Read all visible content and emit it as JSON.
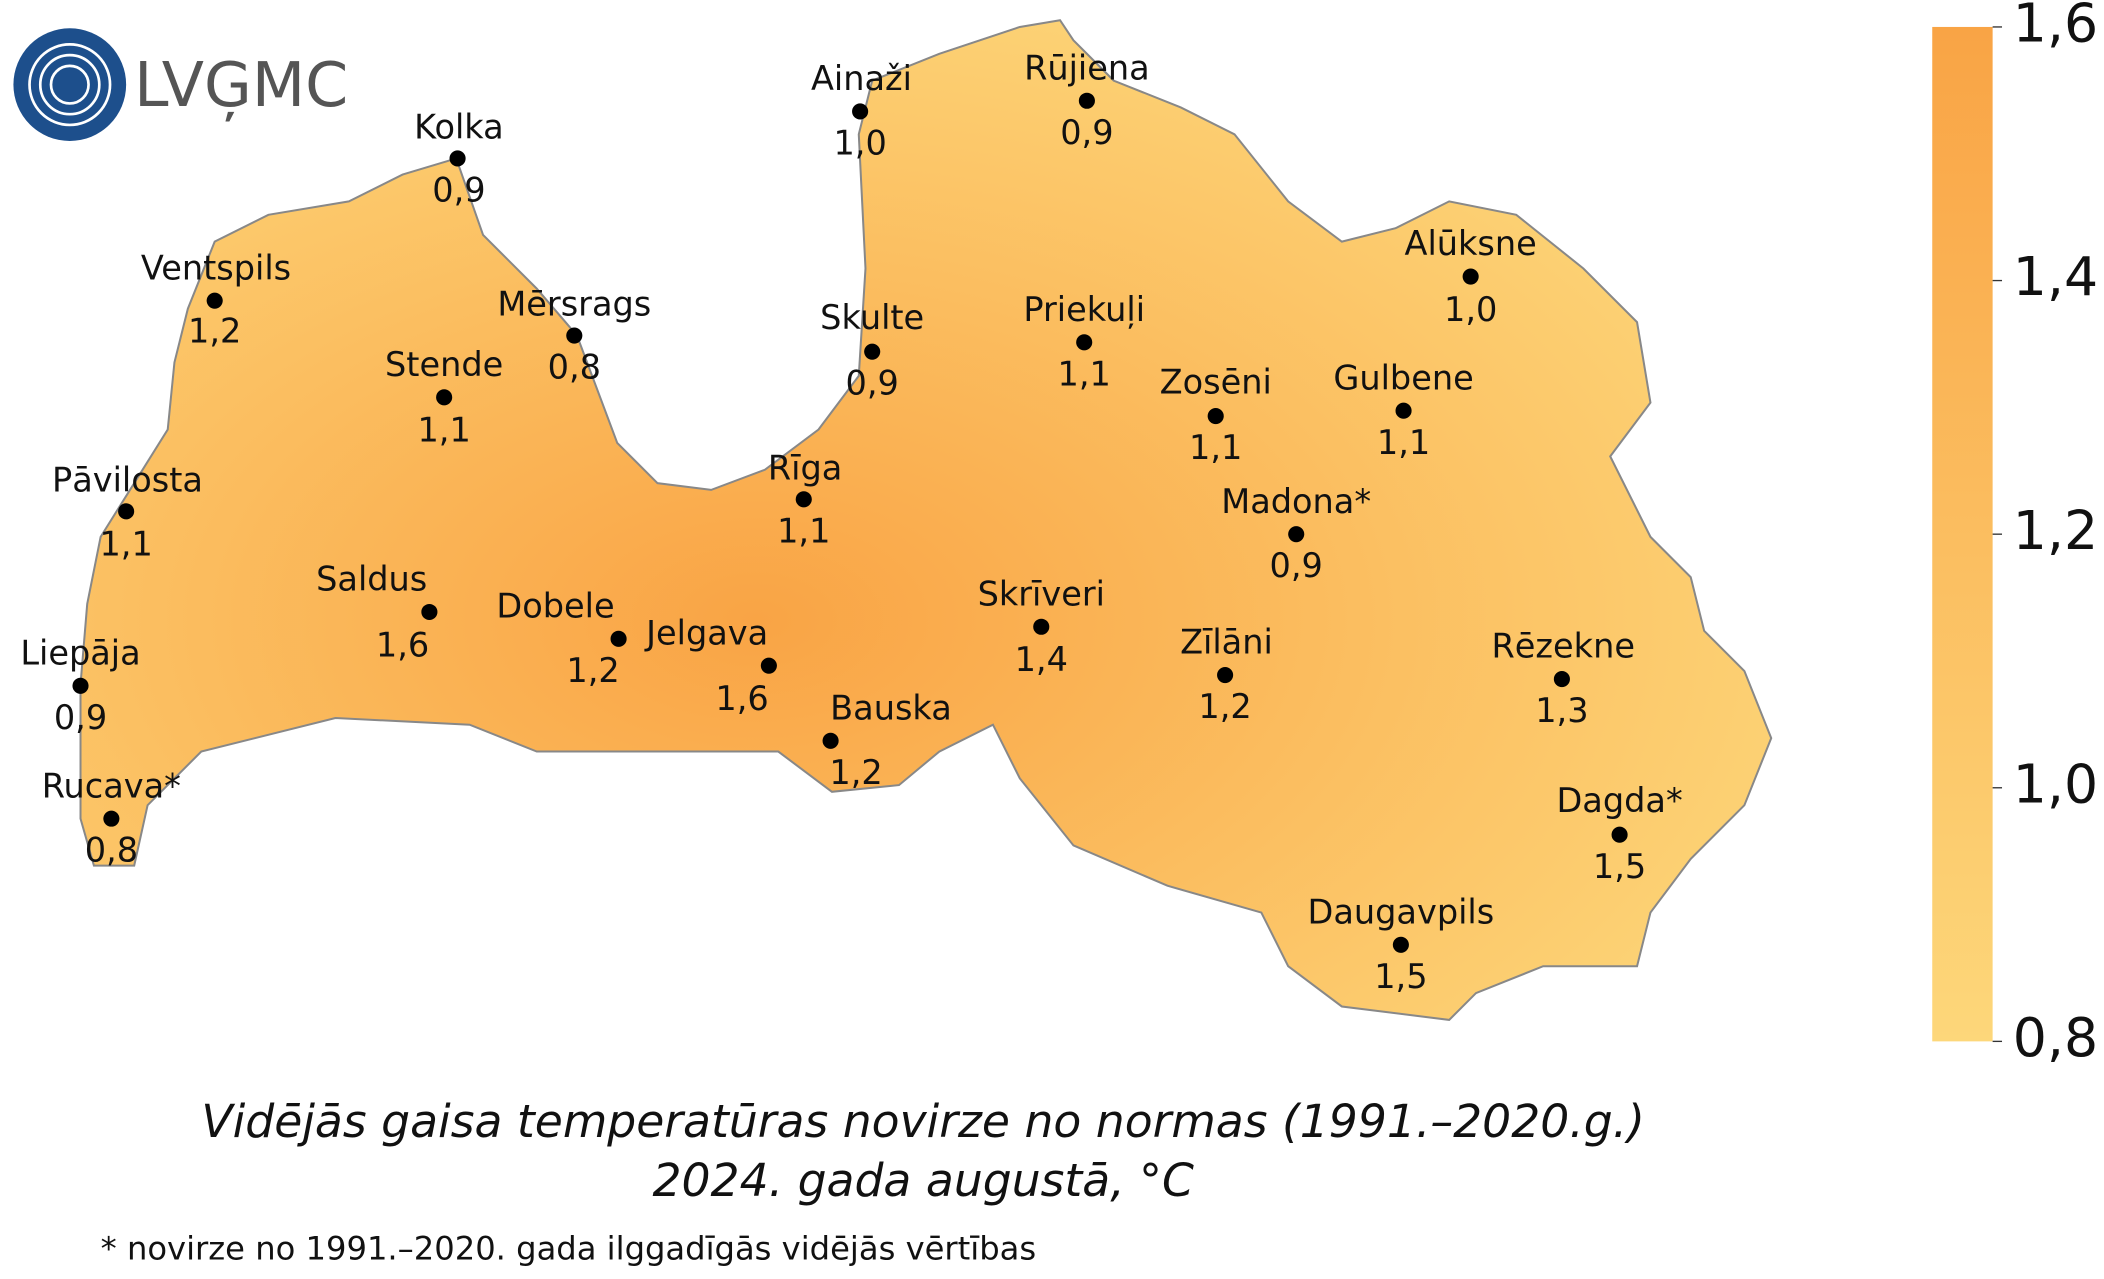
{
  "logo": {
    "text": "LVĢMC"
  },
  "title": [
    "Vidējās gaisa temperatūras novirze no normas (1991.–2020.g.)",
    "2024. gada augustā, °C"
  ],
  "footnote": "* novirze no 1991.–2020. gada ilggadīgās vidējās vērtības",
  "colorbar": {
    "range": [
      0.8,
      1.6
    ],
    "colors": [
      "#fdd77a",
      "#f9a445"
    ],
    "ticks": [
      {
        "value": 1.6,
        "label": "1,6"
      },
      {
        "value": 1.4,
        "label": "1,4"
      },
      {
        "value": 1.2,
        "label": "1,2"
      },
      {
        "value": 1.0,
        "label": "1,0"
      },
      {
        "value": 0.8,
        "label": "0,8"
      }
    ]
  },
  "stations": [
    {
      "name": "Ainaži",
      "value": 1.0,
      "label": "1,0"
    },
    {
      "name": "Rūjiena",
      "value": 0.9,
      "label": "0,9"
    },
    {
      "name": "Kolka",
      "value": 0.9,
      "label": "0,9"
    },
    {
      "name": "Ventspils",
      "value": 1.2,
      "label": "1,2"
    },
    {
      "name": "Mērsrags",
      "value": 0.8,
      "label": "0,8"
    },
    {
      "name": "Skulte",
      "value": 0.9,
      "label": "0,9"
    },
    {
      "name": "Priekuļi",
      "value": 1.1,
      "label": "1,1"
    },
    {
      "name": "Alūksne",
      "value": 1.0,
      "label": "1,0"
    },
    {
      "name": "Stende",
      "value": 1.1,
      "label": "1,1"
    },
    {
      "name": "Zosēni",
      "value": 1.1,
      "label": "1,1"
    },
    {
      "name": "Gulbene",
      "value": 1.1,
      "label": "1,1"
    },
    {
      "name": "Pāvilosta",
      "value": 1.1,
      "label": "1,1"
    },
    {
      "name": "Rīga",
      "value": 1.1,
      "label": "1,1"
    },
    {
      "name": "Madona*",
      "value": 0.9,
      "label": "0,9"
    },
    {
      "name": "Saldus",
      "value": 1.6,
      "label": "1,6"
    },
    {
      "name": "Dobele",
      "value": 1.2,
      "label": "1,2"
    },
    {
      "name": "Jelgava",
      "value": 1.6,
      "label": "1,6"
    },
    {
      "name": "Skrīveri",
      "value": 1.4,
      "label": "1,4"
    },
    {
      "name": "Zīlāni",
      "value": 1.2,
      "label": "1,2"
    },
    {
      "name": "Rēzekne",
      "value": 1.3,
      "label": "1,3"
    },
    {
      "name": "Liepāja",
      "value": 0.9,
      "label": "0,9"
    },
    {
      "name": "Bauska",
      "value": 1.2,
      "label": "1,2"
    },
    {
      "name": "Rucava*",
      "value": 0.8,
      "label": "0,8"
    },
    {
      "name": "Dagda*",
      "value": 1.5,
      "label": "1,5"
    },
    {
      "name": "Daugavpils",
      "value": 1.5,
      "label": "1,5"
    }
  ]
}
